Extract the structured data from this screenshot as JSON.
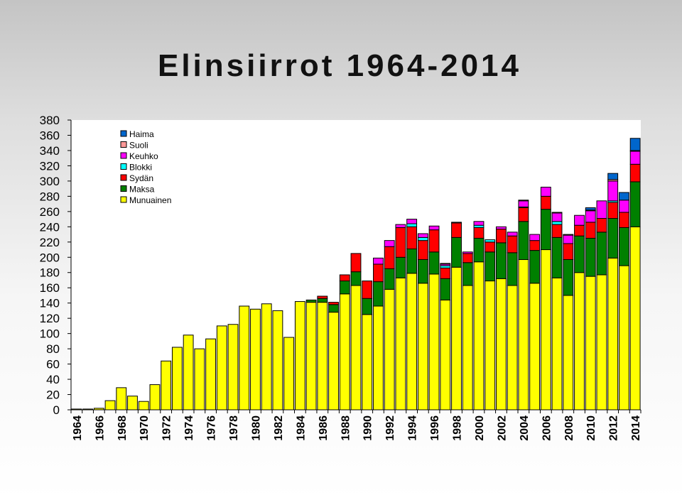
{
  "chart_data": {
    "type": "bar",
    "stacked": true,
    "title": "Elinsiirrot 1964-2014",
    "xlabel": "",
    "ylabel": "",
    "ylim": [
      0,
      380
    ],
    "ytick_step": 20,
    "grid": false,
    "legend_position": "top-left",
    "categories": [
      "1964",
      "1965",
      "1966",
      "1967",
      "1968",
      "1969",
      "1970",
      "1971",
      "1972",
      "1973",
      "1974",
      "1975",
      "1976",
      "1977",
      "1978",
      "1979",
      "1980",
      "1981",
      "1982",
      "1983",
      "1984",
      "1985",
      "1986",
      "1987",
      "1988",
      "1989",
      "1990",
      "1991",
      "1992",
      "1993",
      "1994",
      "1995",
      "1996",
      "1997",
      "1998",
      "1999",
      "2000",
      "2001",
      "2002",
      "2003",
      "2004",
      "2005",
      "2006",
      "2007",
      "2008",
      "2009",
      "2010",
      "2011",
      "2012",
      "2013",
      "2014"
    ],
    "xtick_labels": [
      "1964",
      "1966",
      "1968",
      "1970",
      "1972",
      "1974",
      "1976",
      "1978",
      "1980",
      "1982",
      "1984",
      "1986",
      "1988",
      "1990",
      "1992",
      "1994",
      "1996",
      "1998",
      "2000",
      "2002",
      "2004",
      "2006",
      "2008",
      "2010",
      "2012",
      "2014"
    ],
    "series": [
      {
        "name": "Munuainen",
        "color": "#ffff00",
        "values": [
          1,
          1,
          2,
          12,
          29,
          18,
          11,
          33,
          64,
          82,
          98,
          80,
          93,
          110,
          112,
          136,
          132,
          139,
          130,
          95,
          142,
          141,
          141,
          128,
          152,
          163,
          125,
          136,
          158,
          173,
          179,
          166,
          178,
          144,
          187,
          163,
          194,
          169,
          172,
          163,
          197,
          166,
          210,
          173,
          150,
          180,
          175,
          177,
          199,
          189,
          240
        ]
      },
      {
        "name": "Maksa",
        "color": "#008000",
        "values": [
          0,
          0,
          0,
          0,
          0,
          0,
          0,
          0,
          0,
          0,
          0,
          0,
          0,
          0,
          0,
          0,
          0,
          0,
          0,
          0,
          0,
          3,
          5,
          10,
          17,
          18,
          21,
          32,
          27,
          27,
          32,
          31,
          29,
          28,
          39,
          30,
          31,
          38,
          47,
          43,
          50,
          43,
          53,
          53,
          47,
          48,
          50,
          56,
          52,
          50,
          59
        ]
      },
      {
        "name": "Sydän",
        "color": "#ff0000",
        "values": [
          0,
          0,
          0,
          0,
          0,
          0,
          0,
          0,
          0,
          0,
          0,
          0,
          0,
          0,
          0,
          0,
          0,
          0,
          0,
          0,
          0,
          0,
          3,
          3,
          8,
          24,
          23,
          23,
          29,
          39,
          29,
          25,
          29,
          14,
          19,
          12,
          14,
          13,
          18,
          22,
          18,
          13,
          17,
          17,
          21,
          14,
          21,
          18,
          21,
          20,
          23
        ]
      },
      {
        "name": "Blokki",
        "color": "#00ffff",
        "values": [
          0,
          0,
          0,
          0,
          0,
          0,
          0,
          0,
          0,
          0,
          0,
          0,
          0,
          0,
          0,
          0,
          0,
          0,
          0,
          0,
          0,
          0,
          0,
          0,
          0,
          0,
          0,
          0,
          0,
          0,
          4,
          4,
          0,
          3,
          0,
          0,
          3,
          3,
          0,
          0,
          1,
          0,
          0,
          4,
          0,
          0,
          0,
          0,
          2,
          0,
          0
        ]
      },
      {
        "name": "Keuhko",
        "color": "#ff00ff",
        "values": [
          0,
          0,
          0,
          0,
          0,
          0,
          0,
          0,
          0,
          0,
          0,
          0,
          0,
          0,
          0,
          0,
          0,
          0,
          0,
          0,
          0,
          0,
          0,
          0,
          0,
          0,
          0,
          8,
          8,
          4,
          6,
          5,
          5,
          2,
          0,
          2,
          5,
          0,
          3,
          5,
          8,
          8,
          12,
          11,
          11,
          13,
          15,
          23,
          26,
          16,
          17
        ]
      },
      {
        "name": "Suoli",
        "color": "#ff9999",
        "values": [
          0,
          0,
          0,
          0,
          0,
          0,
          0,
          0,
          0,
          0,
          0,
          0,
          0,
          0,
          0,
          0,
          0,
          0,
          0,
          0,
          0,
          0,
          0,
          0,
          0,
          0,
          0,
          0,
          0,
          0,
          0,
          0,
          0,
          1,
          1,
          0,
          0,
          0,
          0,
          0,
          1,
          0,
          0,
          1,
          1,
          0,
          1,
          0,
          2,
          0,
          1
        ]
      },
      {
        "name": "Haima",
        "color": "#0066cc",
        "values": [
          0,
          0,
          0,
          0,
          0,
          0,
          0,
          0,
          0,
          0,
          0,
          0,
          0,
          0,
          0,
          0,
          0,
          0,
          0,
          0,
          0,
          0,
          0,
          0,
          0,
          0,
          0,
          0,
          0,
          0,
          0,
          0,
          0,
          0,
          0,
          0,
          0,
          0,
          0,
          0,
          0,
          0,
          0,
          0,
          0,
          0,
          3,
          0,
          8,
          10,
          16
        ]
      }
    ]
  }
}
